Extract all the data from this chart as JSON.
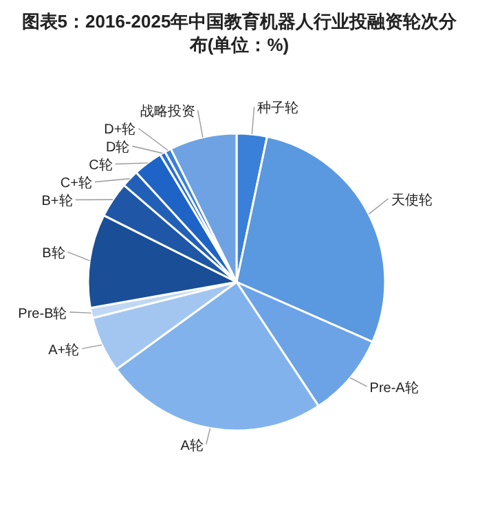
{
  "chart_data": {
    "type": "pie",
    "title": "图表5：2016-2025年中国教育机器人行业投融资轮次分布(单位：%)",
    "categories": [
      "种子轮",
      "天使轮",
      "Pre-A轮",
      "A轮",
      "A+轮",
      "Pre-B轮",
      "B轮",
      "B+轮",
      "C+轮",
      "C轮",
      "D轮",
      "D+轮",
      "战略投资"
    ],
    "values": [
      3.3,
      28.3,
      9.1,
      24.3,
      6.1,
      1.1,
      10.2,
      3.9,
      1.9,
      3.2,
      0.6,
      0.7,
      7.3
    ],
    "colors": [
      "#3a7fd8",
      "#5a98e0",
      "#6ba3e6",
      "#82b2ec",
      "#a3c6f0",
      "#c0d8f4",
      "#1a4e96",
      "#1f57a6",
      "#2260b8",
      "#1e63c6",
      "#2a6fd0",
      "#3b80da",
      "#6fa2e2"
    ]
  }
}
